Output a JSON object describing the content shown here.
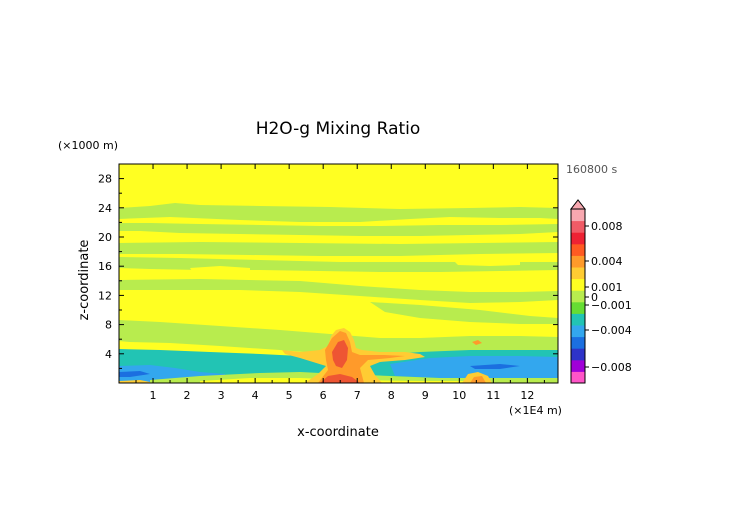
{
  "chart_data": {
    "type": "heatmap",
    "title": "H2O-g Mixing Ratio",
    "xlabel": "x-coordinate",
    "ylabel": "z-coordinate",
    "x_unit": "(×1E4 m)",
    "y_unit": "(×1000 m)",
    "time_label": "160800 s",
    "xlim": [
      0,
      12.9
    ],
    "ylim": [
      0,
      30
    ],
    "x_ticks": [
      "1",
      "2",
      "3",
      "4",
      "5",
      "6",
      "7",
      "8",
      "9",
      "10",
      "11",
      "12"
    ],
    "y_ticks": [
      "4",
      "8",
      "12",
      "16",
      "20",
      "24",
      "28"
    ],
    "colorbar": {
      "range": [
        -0.01,
        0.01
      ],
      "labels": [
        "0.008",
        "0.004",
        "0.001",
        "0",
        "−0.001",
        "−0.004",
        "−0.008"
      ],
      "label_values": [
        0.008,
        0.004,
        0.001,
        0,
        -0.001,
        -0.004,
        -0.008
      ],
      "colors": [
        "#ff55c8",
        "#a000d8",
        "#2e33c8",
        "#1b6fe0",
        "#33a7ee",
        "#22c4b4",
        "#66dd33",
        "#b8ec4e",
        "#ffff22",
        "#ffcc33",
        "#ff9a2a",
        "#ff5a22",
        "#ee2233",
        "#f05b66",
        "#f8a8b0"
      ],
      "extend": "max"
    },
    "colors": {
      "positive_small": "#ffff22",
      "near_zero_band": "#b8ec4e",
      "negative_small": "#22c4b4",
      "negative_mid": "#33a7ee",
      "negative_large": "#1b6fe0",
      "positive_mid": "#ffcc33",
      "positive_large": "#ff9a2a",
      "positive_peak": "#ee5533"
    }
  }
}
